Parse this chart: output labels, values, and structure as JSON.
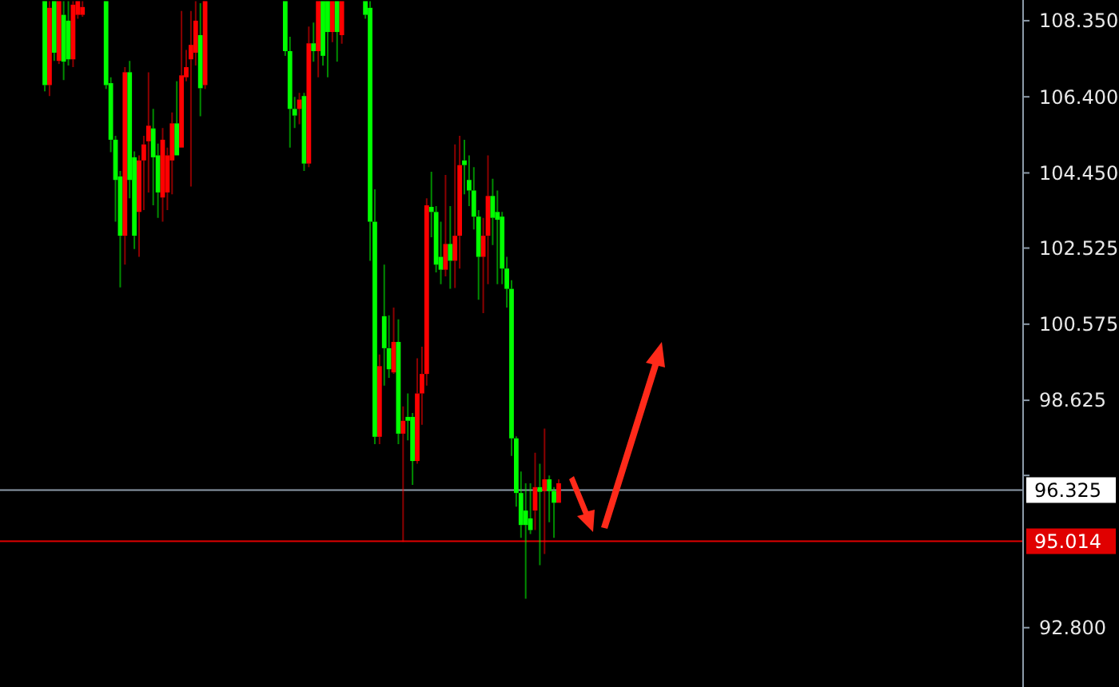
{
  "chart_data": {
    "type": "candlestick",
    "categories": [
      null,
      null,
      null,
      null,
      null,
      null,
      null,
      null,
      null,
      null,
      null,
      null,
      null,
      null,
      null,
      null,
      null,
      null,
      null,
      null,
      null,
      null,
      null,
      null,
      null,
      null,
      null,
      null,
      null,
      null,
      null,
      null,
      null,
      null,
      null,
      null,
      null,
      null,
      null,
      null,
      null,
      null,
      null,
      null,
      null,
      null,
      null,
      null,
      null,
      null,
      null,
      null,
      null,
      null,
      null,
      null,
      null,
      null,
      null,
      null,
      null,
      null,
      null,
      null,
      null,
      null,
      null,
      null,
      null,
      null,
      null,
      null,
      null,
      null,
      null,
      null,
      null,
      null,
      null,
      null,
      null,
      null,
      null,
      null,
      null,
      null,
      null,
      null,
      null,
      null,
      null,
      null,
      null,
      null,
      null,
      null,
      null,
      null,
      null,
      null,
      null,
      null,
      null,
      null,
      null,
      null,
      null,
      null,
      null,
      null,
      null,
      null,
      null,
      null,
      null,
      null,
      null,
      null,
      null,
      null,
      null,
      null,
      null,
      null,
      null,
      null,
      null,
      null,
      null,
      null,
      null,
      null,
      null,
      null,
      null,
      null,
      null,
      null,
      null,
      null,
      null,
      null,
      null,
      null,
      null,
      null,
      null,
      null,
      null,
      null,
      null,
      null,
      null,
      null,
      null,
      null,
      null,
      null,
      null,
      null,
      null,
      null,
      null,
      null,
      null,
      null,
      null,
      null,
      null,
      null,
      null,
      null,
      null,
      null,
      null,
      null,
      null,
      null,
      null,
      null,
      null,
      null,
      null,
      null,
      null,
      null,
      null,
      null,
      null,
      null,
      null,
      null,
      null,
      null,
      null,
      null,
      null,
      null,
      null,
      null,
      null,
      null,
      null,
      null,
      null,
      null,
      null,
      null,
      null,
      null,
      null,
      null,
      null,
      null,
      null,
      null,
      null
    ],
    "ohlc": [
      null,
      null,
      null,
      null,
      null,
      null,
      null,
      null,
      null,
      [
        106.7,
        108.85,
        106.54,
        108.85
      ],
      [
        108.68,
        108.85,
        106.42,
        106.7
      ],
      [
        107.53,
        108.85,
        107.32,
        108.85
      ],
      [
        108.85,
        108.85,
        107.24,
        107.32
      ],
      [
        107.3,
        108.85,
        106.83,
        108.5
      ],
      [
        107.36,
        108.85,
        107.2,
        108.35
      ],
      [
        108.76,
        108.85,
        107.16,
        107.36
      ],
      [
        108.85,
        108.85,
        108.4,
        108.5
      ],
      [
        108.7,
        108.85,
        108.45,
        108.5
      ],
      null,
      null,
      null,
      null,
      [
        106.7,
        108.85,
        106.6,
        108.85
      ],
      [
        105.3,
        106.9,
        104.98,
        106.75
      ],
      [
        104.27,
        105.4,
        103.2,
        105.3
      ],
      [
        102.84,
        104.5,
        101.52,
        104.36
      ],
      [
        107.03,
        107.16,
        102.1,
        102.84
      ],
      [
        104.27,
        107.32,
        103.8,
        107.03
      ],
      [
        102.84,
        105.0,
        102.5,
        104.85
      ],
      [
        104.77,
        104.9,
        102.3,
        103.45
      ],
      [
        105.18,
        105.4,
        103.5,
        104.77
      ],
      [
        105.66,
        107.03,
        103.95,
        105.26
      ],
      [
        104.85,
        106.09,
        103.62,
        105.59
      ],
      [
        103.95,
        105.2,
        103.3,
        104.9
      ],
      [
        105.3,
        105.6,
        103.2,
        103.82
      ],
      [
        104.9,
        105.1,
        103.5,
        103.95
      ],
      [
        105.72,
        106.0,
        103.9,
        104.77
      ],
      [
        104.9,
        106.8,
        104.9,
        105.72
      ],
      [
        106.95,
        108.6,
        105.1,
        105.1
      ],
      [
        107.16,
        107.6,
        106.8,
        106.9
      ],
      [
        107.73,
        108.6,
        104.1,
        107.36
      ],
      [
        108.35,
        108.85,
        107.2,
        107.53
      ],
      [
        106.62,
        108.8,
        105.9,
        107.98
      ],
      [
        108.85,
        108.85,
        106.6,
        106.7
      ],
      null,
      null,
      null,
      null,
      null,
      null,
      null,
      null,
      null,
      null,
      null,
      null,
      null,
      null,
      null,
      null,
      [
        107.57,
        108.85,
        107.45,
        108.85
      ],
      [
        106.09,
        107.94,
        105.1,
        107.57
      ],
      [
        105.92,
        106.4,
        105.6,
        106.09
      ],
      [
        106.33,
        106.5,
        105.7,
        106.09
      ],
      [
        104.69,
        106.5,
        104.5,
        106.42
      ],
      [
        107.77,
        108.2,
        104.6,
        104.69
      ],
      [
        107.57,
        108.3,
        107.3,
        107.77
      ],
      [
        108.85,
        108.85,
        106.9,
        107.57
      ],
      [
        107.45,
        108.85,
        107.2,
        108.85
      ],
      [
        108.06,
        108.85,
        106.9,
        108.85
      ],
      [
        108.85,
        108.85,
        107.8,
        108.06
      ],
      [
        108.06,
        108.85,
        107.3,
        108.85
      ],
      [
        108.85,
        108.85,
        107.76,
        107.98
      ],
      null,
      null,
      null,
      null,
      [
        108.5,
        108.85,
        108.4,
        108.85
      ],
      [
        103.2,
        108.85,
        102.2,
        108.68
      ],
      [
        97.69,
        104.03,
        97.5,
        103.2
      ],
      [
        99.5,
        99.8,
        97.5,
        97.69
      ],
      [
        99.96,
        102.1,
        99.0,
        100.78
      ],
      [
        99.42,
        100.8,
        99.2,
        99.96
      ],
      [
        100.12,
        101.0,
        99.3,
        99.34
      ],
      [
        97.77,
        100.7,
        97.5,
        100.12
      ],
      [
        98.1,
        98.47,
        95.0,
        97.77
      ],
      [
        98.1,
        98.8,
        97.6,
        98.2
      ],
      [
        97.07,
        98.3,
        96.46,
        98.2
      ],
      [
        98.8,
        99.7,
        97.0,
        97.07
      ],
      [
        99.3,
        100.0,
        98.0,
        98.8
      ],
      [
        103.62,
        103.8,
        99.0,
        99.3
      ],
      [
        103.45,
        104.48,
        102.8,
        103.58
      ],
      [
        102.1,
        103.6,
        101.9,
        103.45
      ],
      [
        101.97,
        103.2,
        101.6,
        102.3
      ],
      [
        102.63,
        104.4,
        101.8,
        101.97
      ],
      [
        102.2,
        103.6,
        101.48,
        102.63
      ],
      [
        102.84,
        105.18,
        101.5,
        102.2
      ],
      [
        104.65,
        105.4,
        102.0,
        102.84
      ],
      [
        104.65,
        105.3,
        103.9,
        104.77
      ],
      [
        104.0,
        104.9,
        103.6,
        104.27
      ],
      [
        103.33,
        104.6,
        103.0,
        104.0
      ],
      [
        102.3,
        103.5,
        101.2,
        103.33
      ],
      [
        102.84,
        103.3,
        100.86,
        102.3
      ],
      [
        103.86,
        104.9,
        101.6,
        102.84
      ],
      [
        103.3,
        104.3,
        102.6,
        103.86
      ],
      [
        103.25,
        104.0,
        101.6,
        103.45
      ],
      [
        102.0,
        103.45,
        101.6,
        103.33
      ],
      [
        101.48,
        102.3,
        101.0,
        102.0
      ],
      [
        97.65,
        101.7,
        97.2,
        101.48
      ],
      [
        96.25,
        97.7,
        95.9,
        97.65
      ],
      [
        95.43,
        96.8,
        95.1,
        96.25
      ],
      [
        95.43,
        96.5,
        93.54,
        95.8
      ],
      [
        95.3,
        96.5,
        95.2,
        95.6
      ],
      [
        96.4,
        97.28,
        95.3,
        95.8
      ],
      [
        96.28,
        97.0,
        94.4,
        96.4
      ],
      [
        96.6,
        97.9,
        94.69,
        96.3
      ],
      [
        96.3,
        96.7,
        95.5,
        96.6
      ],
      [
        96.0,
        96.4,
        95.1,
        96.3
      ],
      [
        96.5,
        96.6,
        96.0,
        96.0
      ],
      null,
      null,
      null,
      null,
      null,
      null,
      null,
      null,
      null,
      null,
      null,
      null,
      null,
      null,
      null,
      null,
      null,
      null,
      null,
      null,
      null,
      null,
      null,
      null,
      null,
      null,
      null,
      null,
      null,
      null,
      null,
      null,
      null,
      null,
      null,
      null,
      null,
      null,
      null,
      null,
      null,
      null,
      null,
      null,
      null,
      null,
      null,
      null,
      null,
      null,
      null,
      null,
      null,
      null,
      null,
      null,
      null,
      null,
      null,
      null,
      null,
      null,
      null,
      null,
      null,
      null,
      null,
      null,
      null,
      null,
      null,
      null,
      null,
      null,
      null,
      null,
      null,
      null,
      null,
      null,
      null,
      null,
      null,
      null,
      null,
      null,
      null,
      null,
      null,
      null,
      null,
      null,
      null,
      null,
      null,
      null,
      null,
      null
    ],
    "colors": [
      null,
      null,
      null,
      null,
      null,
      null,
      null,
      null,
      null,
      "#00ff00",
      "#ff0000",
      "#00ff00",
      "#ff0000",
      "#00ff00",
      "#00ff00",
      "#ff0000",
      "#ff0000",
      "#ff0000",
      null,
      null,
      null,
      null,
      "#00ff00",
      "#00ff00",
      "#00ff00",
      "#00ff00",
      "#ff0000",
      "#00ff00",
      "#00ff00",
      "#ff0000",
      "#ff0000",
      "#ff0000",
      "#00ff00",
      "#00ff00",
      "#ff0000",
      "#ff0000",
      "#ff0000",
      "#00ff00",
      "#ff0000",
      "#ff0000",
      "#ff0000",
      "#ff0000",
      "#00ff00",
      "#ff0000",
      null,
      null,
      null,
      null,
      null,
      null,
      null,
      null,
      null,
      null,
      null,
      null,
      null,
      null,
      null,
      null,
      "#00ff00",
      "#00ff00",
      "#00ff00",
      "#ff0000",
      "#00ff00",
      "#ff0000",
      "#00ff00",
      "#ff0000",
      "#00ff00",
      "#00ff00",
      "#ff0000",
      "#00ff00",
      "#ff0000",
      null,
      null,
      null,
      null,
      "#00ff00",
      "#00ff00",
      "#00ff00",
      "#ff0000",
      "#00ff00",
      "#00ff00",
      "#ff0000",
      "#00ff00",
      "#ff0000",
      "#00ff00",
      "#00ff00",
      "#ff0000",
      "#ff0000",
      "#ff0000",
      "#00ff00",
      "#00ff00",
      "#00ff00",
      "#ff0000",
      "#00ff00",
      "#ff0000",
      "#ff0000",
      "#00ff00",
      "#00ff00",
      "#00ff00",
      "#00ff00",
      "#ff0000",
      "#ff0000",
      "#00ff00",
      "#00ff00",
      "#00ff00",
      "#00ff00",
      "#00ff00",
      "#00ff00",
      "#00ff00",
      "#00ff00",
      "#00ff00",
      "#ff0000",
      "#00ff00",
      "#ff0000",
      "#00ff00",
      "#00ff00",
      "#ff0000",
      null,
      null,
      null,
      null,
      null,
      null,
      null,
      null,
      null,
      null,
      null,
      null,
      null,
      null,
      null,
      null,
      null,
      null,
      null,
      null,
      null,
      null,
      null,
      null,
      null,
      null,
      null,
      null,
      null,
      null,
      null,
      null,
      null,
      null,
      null,
      null,
      null,
      null,
      null,
      null,
      null,
      null,
      null,
      null,
      null,
      null,
      null,
      null,
      null,
      null,
      null,
      null,
      null,
      null,
      null,
      null,
      null,
      null,
      null,
      null,
      null,
      null,
      null,
      null,
      null,
      null,
      null,
      null,
      null,
      null,
      null,
      null,
      null,
      null,
      null,
      null,
      null,
      null,
      null,
      null,
      null,
      null,
      null,
      null,
      null,
      null,
      null,
      null,
      null,
      null,
      null,
      null,
      null,
      null,
      null,
      null,
      null,
      null
    ],
    "ylim": [
      91.28,
      108.88
    ],
    "yticks": [
      {
        "value": 108.35,
        "label": "108.350"
      },
      {
        "value": 106.4,
        "label": "106.400"
      },
      {
        "value": 104.45,
        "label": "104.450"
      },
      {
        "value": 102.525,
        "label": "102.525"
      },
      {
        "value": 100.575,
        "label": "100.575"
      },
      {
        "value": 98.625,
        "label": "98.625"
      },
      {
        "value": 96.7,
        "label": null
      },
      {
        "value": 92.8,
        "label": "92.800"
      }
    ],
    "ref_lines": [
      {
        "axis": "y",
        "value": 96.325,
        "label": "96.325",
        "color": "#8c9aa8"
      },
      {
        "axis": "y",
        "value": 95.014,
        "label": "95.014",
        "color": "#e00000"
      }
    ]
  }
}
